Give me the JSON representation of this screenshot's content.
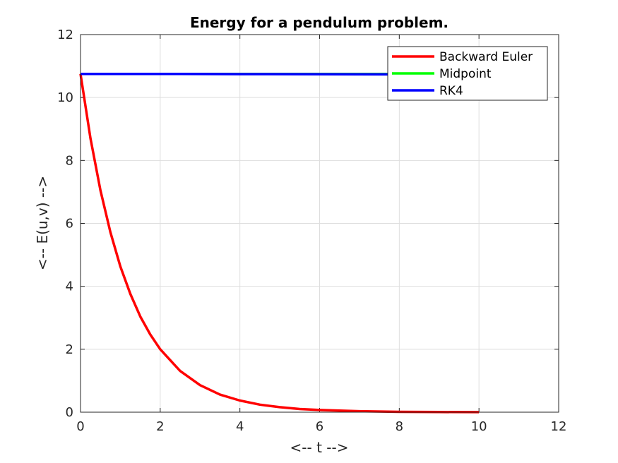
{
  "chart_data": {
    "type": "line",
    "title": "Energy for a pendulum problem.",
    "xlabel": "<-- t -->",
    "ylabel": "<-- E(u,v) -->",
    "xlim": [
      0,
      12
    ],
    "ylim": [
      0,
      12
    ],
    "xticks": [
      "0",
      "2",
      "4",
      "6",
      "8",
      "10",
      "12"
    ],
    "yticks": [
      "0",
      "2",
      "4",
      "6",
      "8",
      "10",
      "12"
    ],
    "grid": true,
    "legend_position": "top-right",
    "series": [
      {
        "name": "Backward Euler",
        "color": "#ff0000",
        "x": [
          0,
          0.25,
          0.5,
          0.75,
          1,
          1.25,
          1.5,
          1.75,
          2,
          2.5,
          3,
          3.5,
          4,
          4.5,
          5,
          5.5,
          6,
          7,
          8,
          9,
          10
        ],
        "y": [
          10.75,
          8.7,
          7.05,
          5.72,
          4.63,
          3.76,
          3.04,
          2.47,
          2.0,
          1.31,
          0.86,
          0.56,
          0.37,
          0.24,
          0.16,
          0.1,
          0.07,
          0.03,
          0.01,
          0.005,
          0.002
        ]
      },
      {
        "name": "Midpoint",
        "color": "#00ff00",
        "x": [
          0,
          2,
          4,
          6,
          8,
          10
        ],
        "y": [
          10.75,
          10.75,
          10.75,
          10.75,
          10.75,
          10.75
        ]
      },
      {
        "name": "RK4",
        "color": "#0000ff",
        "x": [
          0,
          2,
          4,
          6,
          8,
          10
        ],
        "y": [
          10.75,
          10.75,
          10.745,
          10.74,
          10.735,
          10.73
        ]
      }
    ]
  }
}
